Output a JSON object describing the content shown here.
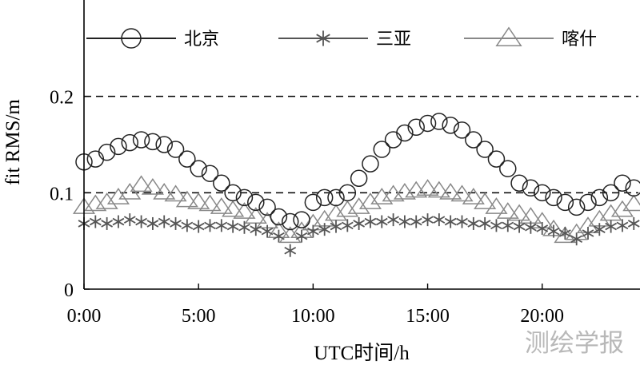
{
  "chart_data": {
    "type": "scatter",
    "xlabel": "UTC时间/h",
    "ylabel": "fit RMS/m",
    "xlim": [
      0,
      24.2
    ],
    "ylim": [
      0,
      0.3
    ],
    "x_ticks": [
      0,
      5,
      10,
      15,
      20
    ],
    "x_tick_labels": [
      "0:00",
      "5:00",
      "10:00",
      "15:00",
      "20:00"
    ],
    "y_ticks": [
      0,
      0.1,
      0.2
    ],
    "y_tick_labels": [
      "0",
      "0.1",
      "0.2"
    ],
    "reference_lines": [
      0.1,
      0.2
    ],
    "legend_position": "top",
    "series": [
      {
        "name": "北京",
        "marker": "circle",
        "color": "#222222",
        "x": [
          0,
          0.5,
          1,
          1.5,
          2,
          2.5,
          3,
          3.5,
          4,
          4.5,
          5,
          5.5,
          6,
          6.5,
          7,
          7.5,
          8,
          8.5,
          9,
          9.5,
          10,
          10.5,
          11,
          11.5,
          12,
          12.5,
          13,
          13.5,
          14,
          14.5,
          15,
          15.5,
          16,
          16.5,
          17,
          17.5,
          18,
          18.5,
          19,
          19.5,
          20,
          20.5,
          21,
          21.5,
          22,
          22.5,
          23,
          23.5,
          24
        ],
        "values": [
          0.132,
          0.135,
          0.142,
          0.148,
          0.152,
          0.155,
          0.153,
          0.15,
          0.145,
          0.135,
          0.125,
          0.12,
          0.11,
          0.1,
          0.095,
          0.09,
          0.085,
          0.075,
          0.07,
          0.072,
          0.09,
          0.095,
          0.095,
          0.1,
          0.115,
          0.13,
          0.145,
          0.155,
          0.162,
          0.168,
          0.172,
          0.174,
          0.17,
          0.165,
          0.155,
          0.145,
          0.135,
          0.125,
          0.11,
          0.105,
          0.1,
          0.095,
          0.09,
          0.085,
          0.09,
          0.095,
          0.1,
          0.11,
          0.105
        ]
      },
      {
        "name": "三亚",
        "marker": "asterisk",
        "color": "#555555",
        "x": [
          0,
          0.5,
          1,
          1.5,
          2,
          2.5,
          3,
          3.5,
          4,
          4.5,
          5,
          5.5,
          6,
          6.5,
          7,
          7.5,
          8,
          8.5,
          9,
          9.5,
          10,
          10.5,
          11,
          11.5,
          12,
          12.5,
          13,
          13.5,
          14,
          14.5,
          15,
          15.5,
          16,
          16.5,
          17,
          17.5,
          18,
          18.5,
          19,
          19.5,
          20,
          20.5,
          21,
          21.5,
          22,
          22.5,
          23,
          23.5,
          24
        ],
        "values": [
          0.068,
          0.07,
          0.068,
          0.07,
          0.072,
          0.07,
          0.068,
          0.07,
          0.068,
          0.066,
          0.065,
          0.066,
          0.066,
          0.065,
          0.064,
          0.062,
          0.06,
          0.055,
          0.04,
          0.055,
          0.06,
          0.062,
          0.065,
          0.066,
          0.068,
          0.07,
          0.07,
          0.072,
          0.07,
          0.07,
          0.072,
          0.072,
          0.07,
          0.07,
          0.068,
          0.068,
          0.066,
          0.066,
          0.065,
          0.064,
          0.063,
          0.06,
          0.058,
          0.052,
          0.058,
          0.062,
          0.065,
          0.066,
          0.068
        ]
      },
      {
        "name": "喀什",
        "marker": "triangle",
        "color": "#888888",
        "x": [
          0,
          0.5,
          1,
          1.5,
          2,
          2.5,
          3,
          3.5,
          4,
          4.5,
          5,
          5.5,
          6,
          6.5,
          7,
          7.5,
          8,
          8.5,
          9,
          9.5,
          10,
          10.5,
          11,
          11.5,
          12,
          12.5,
          13,
          13.5,
          14,
          14.5,
          15,
          15.5,
          16,
          16.5,
          17,
          17.5,
          18,
          18.5,
          19,
          19.5,
          20,
          20.5,
          21,
          21.5,
          22,
          22.5,
          23,
          23.5,
          24
        ],
        "values": [
          0.085,
          0.088,
          0.09,
          0.095,
          0.1,
          0.108,
          0.105,
          0.1,
          0.098,
          0.092,
          0.09,
          0.088,
          0.085,
          0.082,
          0.08,
          0.075,
          0.07,
          0.06,
          0.055,
          0.06,
          0.068,
          0.072,
          0.078,
          0.082,
          0.085,
          0.09,
          0.095,
          0.098,
          0.1,
          0.102,
          0.104,
          0.102,
          0.1,
          0.098,
          0.095,
          0.09,
          0.085,
          0.08,
          0.078,
          0.075,
          0.07,
          0.062,
          0.055,
          0.058,
          0.065,
          0.072,
          0.078,
          0.082,
          0.088
        ]
      }
    ]
  },
  "watermark": "测绘学报"
}
